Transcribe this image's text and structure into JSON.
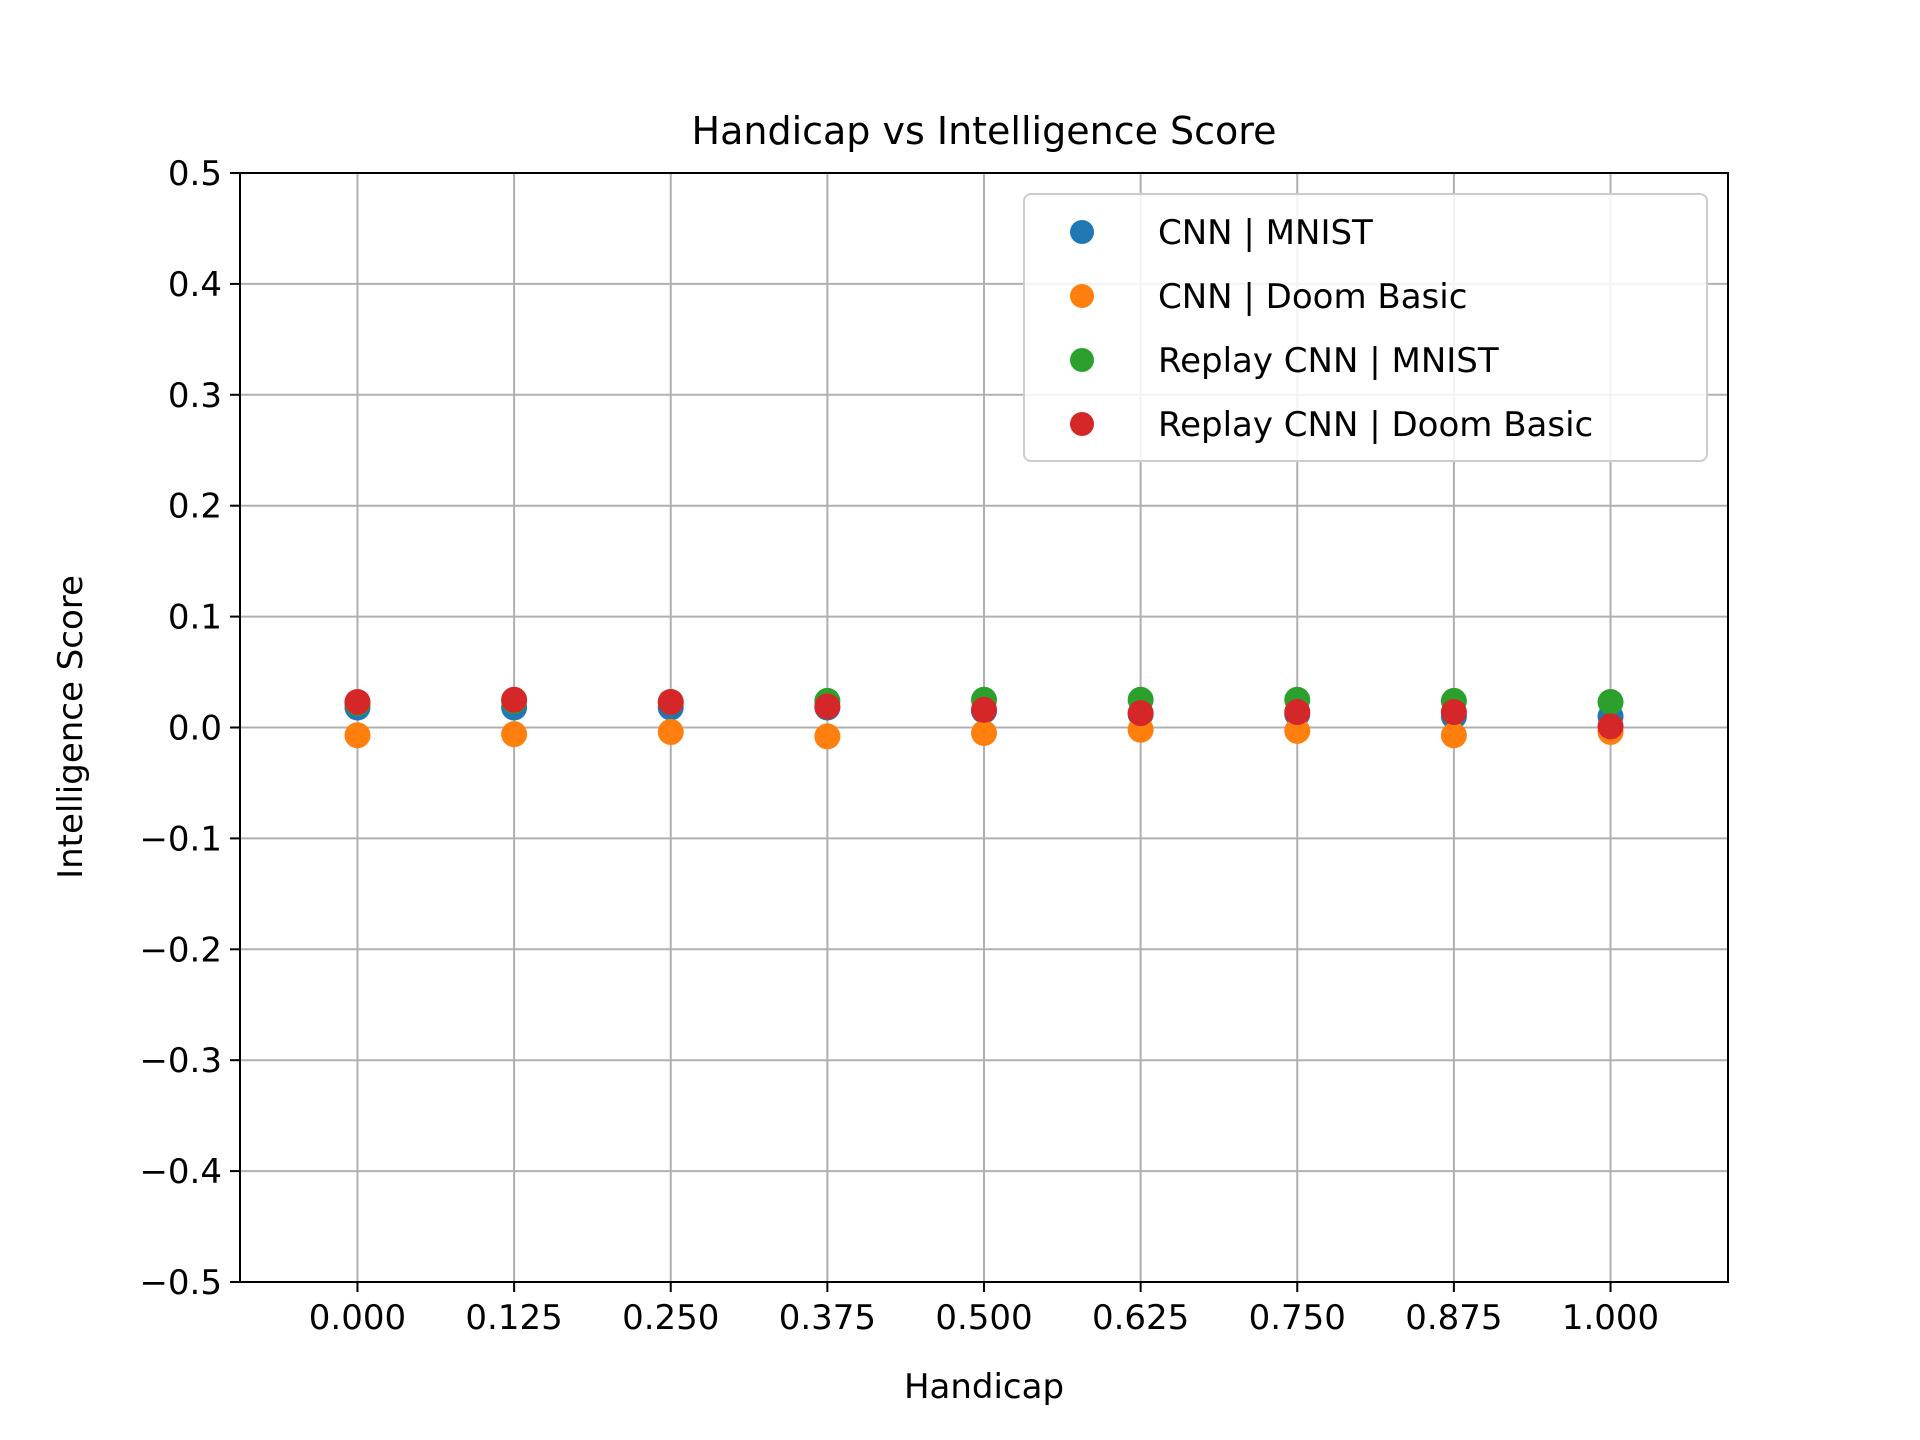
{
  "chart_data": {
    "type": "scatter",
    "title": "Handicap vs Intelligence Score",
    "xlabel": "Handicap",
    "ylabel": "Intelligence Score",
    "xlim": [
      -0.09375,
      1.09375
    ],
    "ylim": [
      -0.5,
      0.5
    ],
    "grid": true,
    "legend_position": "top-right",
    "x_ticks": [
      0.0,
      0.125,
      0.25,
      0.375,
      0.5,
      0.625,
      0.75,
      0.875,
      1.0
    ],
    "x_tick_labels": [
      "0.000",
      "0.125",
      "0.250",
      "0.375",
      "0.500",
      "0.625",
      "0.750",
      "0.875",
      "1.000"
    ],
    "y_ticks": [
      0.5,
      0.4,
      0.3,
      0.2,
      0.1,
      0.0,
      -0.1,
      -0.2,
      -0.3,
      -0.4,
      -0.5
    ],
    "y_tick_labels": [
      "0.5",
      "0.4",
      "0.3",
      "0.2",
      "0.1",
      "0.0",
      "−0.1",
      "−0.2",
      "−0.3",
      "−0.4",
      "−0.5"
    ],
    "x": [
      0.0,
      0.125,
      0.25,
      0.375,
      0.5,
      0.625,
      0.75,
      0.875,
      1.0
    ],
    "series": [
      {
        "name": "CNN | MNIST",
        "color": "#1f77b4",
        "values": [
          0.018,
          0.018,
          0.018,
          0.018,
          0.015,
          0.012,
          0.012,
          0.01,
          0.01
        ]
      },
      {
        "name": "CNN | Doom Basic",
        "color": "#ff7f0e",
        "values": [
          -0.007,
          -0.006,
          -0.004,
          -0.008,
          -0.005,
          -0.002,
          -0.003,
          -0.007,
          -0.004
        ]
      },
      {
        "name": "Replay CNN | MNIST",
        "color": "#2ca02c",
        "values": [
          0.022,
          0.024,
          0.023,
          0.024,
          0.025,
          0.025,
          0.025,
          0.024,
          0.023
        ]
      },
      {
        "name": "Replay CNN | Doom Basic",
        "color": "#d62728",
        "values": [
          0.023,
          0.025,
          0.023,
          0.019,
          0.016,
          0.013,
          0.014,
          0.014,
          0.001
        ]
      }
    ]
  }
}
